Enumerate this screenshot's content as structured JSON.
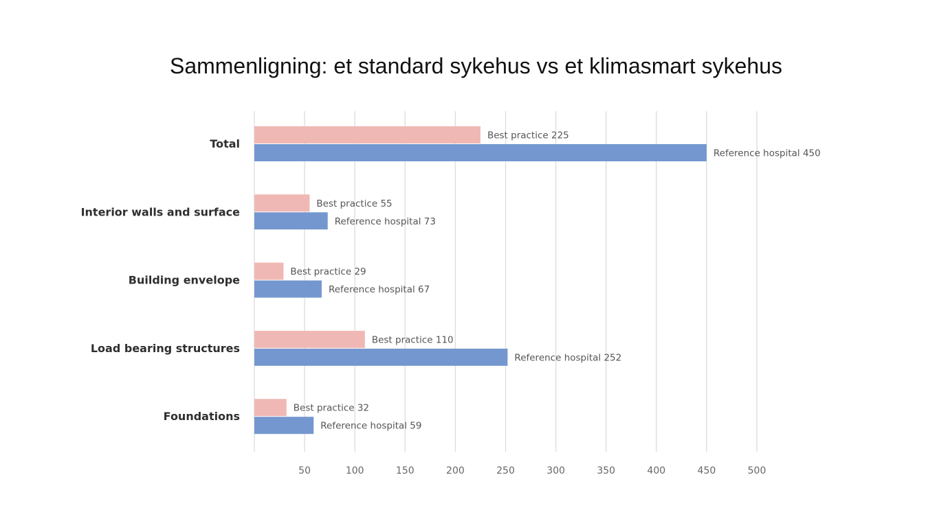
{
  "slide": {
    "title": "Sammenligning: et standard sykehus vs et klimasmart sykehus"
  },
  "chart_data": {
    "type": "bar",
    "orientation": "horizontal",
    "categories": [
      "Total",
      "Interior walls and surface",
      "Building envelope",
      "Load bearing structures",
      "Foundations"
    ],
    "series": [
      {
        "name": "Best practice",
        "color": "#f0b8b4",
        "values": [
          225,
          55,
          29,
          110,
          32
        ]
      },
      {
        "name": "Reference hospital",
        "color": "#7497cf",
        "values": [
          450,
          73,
          67,
          252,
          59
        ]
      }
    ],
    "x_ticks": [
      50,
      100,
      150,
      200,
      250,
      300,
      350,
      400,
      450,
      500
    ],
    "xlim": [
      0,
      500
    ],
    "grid": true,
    "legend": "none"
  }
}
